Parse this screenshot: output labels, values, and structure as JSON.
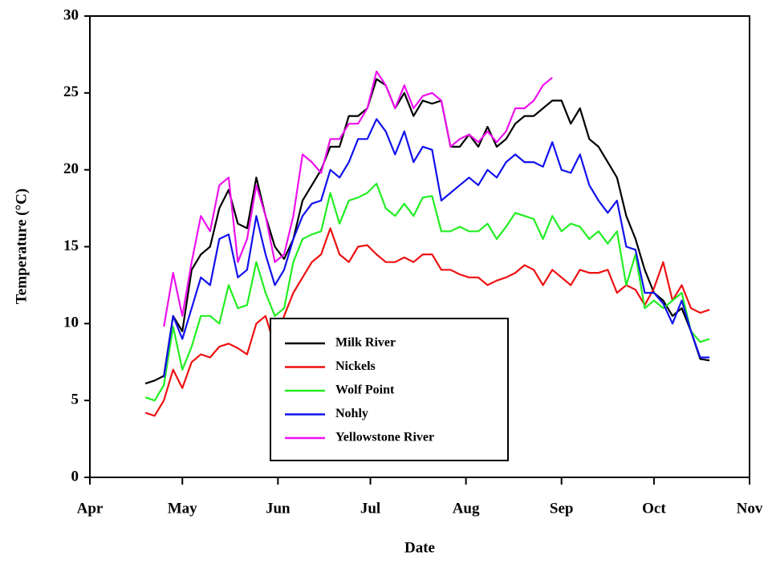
{
  "chart_data": {
    "type": "line",
    "x_label": "Date",
    "y_label": "Temperature (°C)",
    "x": [
      18,
      21,
      24,
      27,
      30,
      33,
      36,
      39,
      42,
      45,
      48,
      51,
      54,
      57,
      60,
      63,
      66,
      69,
      72,
      75,
      78,
      81,
      84,
      87,
      90,
      93,
      96,
      99,
      102,
      105,
      108,
      111,
      114,
      117,
      120,
      123,
      126,
      129,
      132,
      135,
      138,
      141,
      144,
      147,
      150,
      153,
      156,
      159,
      162,
      165,
      168,
      171,
      174,
      177,
      180,
      183,
      186,
      189,
      192,
      195,
      198,
      201
    ],
    "xlim": [
      0,
      214
    ],
    "xticks": [
      {
        "value": 0,
        "label": "Apr"
      },
      {
        "value": 30,
        "label": "May"
      },
      {
        "value": 61,
        "label": "Jun"
      },
      {
        "value": 91,
        "label": "Jul"
      },
      {
        "value": 122,
        "label": "Aug"
      },
      {
        "value": 153,
        "label": "Sep"
      },
      {
        "value": 183,
        "label": "Oct"
      },
      {
        "value": 214,
        "label": "Nov"
      }
    ],
    "ylim": [
      0,
      30
    ],
    "yticks": [
      0,
      5,
      10,
      15,
      20,
      25,
      30
    ],
    "legend": "lower center",
    "series": [
      {
        "name": "Milk River",
        "color": "#000000",
        "values": [
          6.1,
          6.3,
          6.6,
          10.5,
          9.5,
          13.5,
          14.5,
          15,
          17.5,
          18.7,
          16.5,
          16.2,
          19.5,
          17,
          15,
          14.2,
          15.5,
          18,
          19,
          20,
          21.5,
          21.5,
          23.5,
          23.5,
          24,
          25.9,
          25.5,
          24,
          25,
          23.5,
          24.5,
          24.3,
          24.5,
          21.5,
          21.5,
          22.3,
          21.5,
          22.8,
          21.5,
          22,
          23,
          23.5,
          23.5,
          24,
          24.5,
          24.5,
          23,
          24,
          22,
          21.5,
          20.5,
          19.5,
          17,
          15.5,
          13.5,
          12,
          11.5,
          10.5,
          11,
          9.5,
          7.7,
          7.6
        ]
      },
      {
        "name": "Nickels",
        "color": "#ee1111",
        "values": [
          4.2,
          4,
          5,
          7,
          5.8,
          7.5,
          8,
          7.8,
          8.5,
          8.7,
          8.4,
          8,
          10,
          10.5,
          8.5,
          10.5,
          12,
          13,
          14,
          14.5,
          16.2,
          14.5,
          14,
          15,
          15.1,
          14.5,
          14,
          14,
          14.3,
          14,
          14.5,
          14.5,
          13.5,
          13.5,
          13.2,
          13,
          13,
          12.5,
          12.8,
          13,
          13.3,
          13.8,
          13.5,
          12.5,
          13.5,
          13,
          12.5,
          13.5,
          13.3,
          13.3,
          13.5,
          12,
          12.5,
          12.2,
          11.2,
          12.3,
          14,
          11.5,
          12.5,
          11,
          10.7,
          10.9
        ]
      },
      {
        "name": "Wolf Point",
        "color": "#22ee22",
        "values": [
          5.2,
          5,
          6,
          9.8,
          7,
          8.5,
          10.5,
          10.5,
          10,
          12.5,
          11,
          11.2,
          14,
          12,
          10.5,
          11,
          14,
          15.5,
          15.8,
          16,
          18.5,
          16.5,
          18,
          18.2,
          18.5,
          19.1,
          17.5,
          17,
          17.8,
          17,
          18.2,
          18.3,
          16,
          16,
          16.3,
          16,
          16,
          16.5,
          15.5,
          16.3,
          17.2,
          17,
          16.8,
          15.5,
          17,
          16,
          16.5,
          16.3,
          15.5,
          16,
          15.2,
          16,
          12.5,
          14.5,
          11,
          11.5,
          11,
          11.5,
          12,
          9.5,
          8.8,
          9
        ]
      },
      {
        "name": "Nohly",
        "color": "#1111ee",
        "values": [
          null,
          null,
          6.5,
          10.5,
          9,
          11,
          13,
          12.5,
          15.5,
          15.8,
          13,
          13.5,
          17,
          14.5,
          12.5,
          13.5,
          15.5,
          17,
          17.8,
          18,
          20,
          19.5,
          20.5,
          22,
          22,
          23.3,
          22.5,
          21,
          22.5,
          20.5,
          21.5,
          21.3,
          18,
          18.5,
          19,
          19.5,
          19,
          20,
          19.5,
          20.5,
          21,
          20.5,
          20.5,
          20.2,
          21.8,
          20,
          19.8,
          21,
          19,
          18,
          17.2,
          18,
          15,
          14.8,
          12,
          12,
          11.3,
          10,
          11.5,
          9.5,
          7.8,
          7.8
        ]
      },
      {
        "name": "Yellowstone River",
        "color": "#ee11ee",
        "values": [
          null,
          null,
          9.8,
          13.3,
          10.5,
          14,
          17,
          16,
          19,
          19.5,
          14,
          15.5,
          19,
          17,
          14,
          14.5,
          17,
          21,
          20.5,
          19.8,
          22,
          22,
          23,
          23,
          24,
          26.4,
          25.5,
          24,
          25.5,
          24,
          24.8,
          25,
          24.5,
          21.5,
          22,
          22.3,
          21.8,
          22.5,
          21.8,
          22.5,
          24,
          24,
          24.5,
          25.5,
          26,
          null,
          null,
          null,
          null,
          null,
          null,
          null,
          null,
          null,
          null,
          null,
          null,
          null,
          null,
          null,
          null,
          null
        ]
      }
    ]
  }
}
